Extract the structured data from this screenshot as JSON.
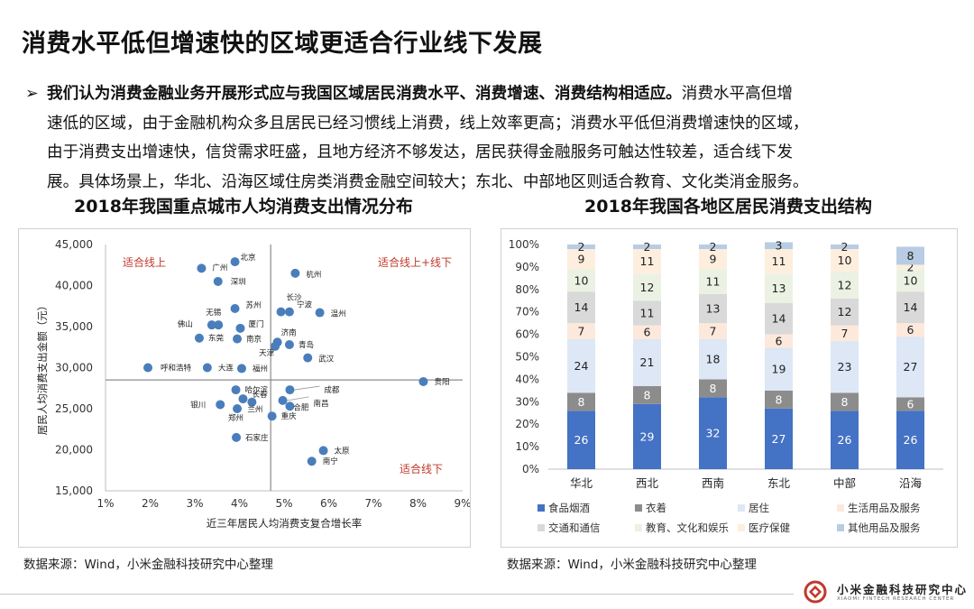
{
  "page": {
    "title": "消费水平低但增速快的区域更适合行业线下发展",
    "para_bold": "我们认为消费金融业务开展形式应与我国区域居民消费水平、消费增速、消费结构相适应。",
    "para_line1": "消费水平高但增",
    "para_line2": "速低的区域，由于金融机构众多且居民已经习惯线上消费，线上效率更高；消费水平低但消费增速快的区域，",
    "para_line3": "由于消费支出增速快，信贷需求旺盛，且地方经济不够发达，居民获得金融服务可触达性较差，适合线下发",
    "para_line4": "展。具体场景上，华北、沿海区域住房类消费金融空间较大；东北、中部地区则适合教育、文化类消金服务。",
    "arrow": "➢",
    "left_chart_title": "2018年我国重点城市人均消费支出情况分布",
    "right_chart_title": "2018年我国各地区居民消费支出结构",
    "source_left": "数据来源：Wind，小米金融科技研究中心整理",
    "source_right": "数据来源：Wind，小米金融科技研究中心整理",
    "logo_cn": "小米金融科技研究中心",
    "logo_en": "XIAOMI FINTECH RESEARCH CENTER",
    "colors": {
      "accent_red": "#c0392b",
      "point": "#4a7ebb"
    }
  },
  "chart_data": [
    {
      "type": "scatter",
      "xlabel": "近三年居民人均消费支复合增长率",
      "ylabel": "居民人均消费支出金额（元）",
      "xlim": [
        0.01,
        0.09
      ],
      "ylim": [
        15000,
        45000
      ],
      "x_ticks": [
        "1%",
        "2%",
        "3%",
        "4%",
        "5%",
        "6%",
        "7%",
        "8%",
        "9%"
      ],
      "y_ticks": [
        "15,000",
        "20,000",
        "25,000",
        "30,000",
        "35,000",
        "40,000",
        "45,000"
      ],
      "quadrant_labels": [
        "适合线上",
        "适合线上+线下",
        "适合线下"
      ],
      "reference_lines": {
        "x": 0.047,
        "y": 28500
      },
      "points": [
        {
          "label": "北京",
          "x": 0.039,
          "y": 42900
        },
        {
          "label": "广州",
          "x": 0.0315,
          "y": 42100
        },
        {
          "label": "杭州",
          "x": 0.0525,
          "y": 41500
        },
        {
          "label": "深圳",
          "x": 0.0352,
          "y": 40500
        },
        {
          "label": "长沙",
          "x": 0.0493,
          "y": 36800
        },
        {
          "label": "宁波",
          "x": 0.0512,
          "y": 36800
        },
        {
          "label": "温州",
          "x": 0.058,
          "y": 36700
        },
        {
          "label": "无锡",
          "x": 0.0353,
          "y": 35200
        },
        {
          "label": "苏州",
          "x": 0.039,
          "y": 37200
        },
        {
          "label": "佛山",
          "x": 0.0338,
          "y": 35200
        },
        {
          "label": "厦门",
          "x": 0.0402,
          "y": 34800
        },
        {
          "label": "东莞",
          "x": 0.031,
          "y": 33600
        },
        {
          "label": "南京",
          "x": 0.0395,
          "y": 33500
        },
        {
          "label": "济南",
          "x": 0.0485,
          "y": 33100
        },
        {
          "label": "青岛",
          "x": 0.0512,
          "y": 32800
        },
        {
          "label": "天津",
          "x": 0.048,
          "y": 32600
        },
        {
          "label": "武汉",
          "x": 0.0553,
          "y": 31200
        },
        {
          "label": "呼和浩特",
          "x": 0.0195,
          "y": 30000
        },
        {
          "label": "大连",
          "x": 0.0328,
          "y": 30000
        },
        {
          "label": "福州",
          "x": 0.0405,
          "y": 29900
        },
        {
          "label": "贵阳",
          "x": 0.0812,
          "y": 28300
        },
        {
          "label": "哈尔滨",
          "x": 0.0392,
          "y": 27300
        },
        {
          "label": "成都",
          "x": 0.0513,
          "y": 27300
        },
        {
          "label": "南昌",
          "x": 0.0497,
          "y": 26000
        },
        {
          "label": "长春",
          "x": 0.0408,
          "y": 26200
        },
        {
          "label": "兰州",
          "x": 0.0428,
          "y": 25800
        },
        {
          "label": "银川",
          "x": 0.0357,
          "y": 25500
        },
        {
          "label": "合肥",
          "x": 0.0513,
          "y": 25300
        },
        {
          "label": "郑州",
          "x": 0.0395,
          "y": 25000
        },
        {
          "label": "重庆",
          "x": 0.0473,
          "y": 24100
        },
        {
          "label": "石家庄",
          "x": 0.0393,
          "y": 21500
        },
        {
          "label": "太原",
          "x": 0.0588,
          "y": 19900
        },
        {
          "label": "南宁",
          "x": 0.0562,
          "y": 18600
        }
      ]
    },
    {
      "type": "bar",
      "stacked": true,
      "percent": true,
      "ylim": [
        0,
        100
      ],
      "y_ticks": [
        "0%",
        "10%",
        "20%",
        "30%",
        "40%",
        "50%",
        "60%",
        "70%",
        "80%",
        "90%",
        "100%"
      ],
      "categories": [
        "华北",
        "西北",
        "西南",
        "东北",
        "中部",
        "沿海"
      ],
      "legend_position": "bottom",
      "series": [
        {
          "name": "食品烟酒",
          "color": "#4472c4",
          "values": [
            26,
            29,
            32,
            27,
            26,
            26
          ]
        },
        {
          "name": "衣着",
          "color": "#8c8c8c",
          "values": [
            8,
            8,
            8,
            8,
            8,
            6
          ]
        },
        {
          "name": "居住",
          "color": "#dde7f5",
          "values": [
            24,
            21,
            18,
            19,
            23,
            27
          ]
        },
        {
          "name": "生活用品及服务",
          "color": "#fde9dc",
          "values": [
            7,
            6,
            7,
            6,
            7,
            6
          ]
        },
        {
          "name": "交通和通信",
          "color": "#d9d9d9",
          "values": [
            14,
            11,
            13,
            14,
            12,
            14
          ]
        },
        {
          "name": "教育、文化和娱乐",
          "color": "#ecf2e3",
          "values": [
            10,
            12,
            11,
            13,
            12,
            10
          ]
        },
        {
          "name": "医疗保健",
          "color": "#fdeedd",
          "values": [
            9,
            11,
            9,
            11,
            10,
            2
          ]
        },
        {
          "name": "其他用品及服务",
          "color": "#b8cce4",
          "values": [
            2,
            2,
            2,
            3,
            2,
            8
          ]
        }
      ]
    }
  ]
}
